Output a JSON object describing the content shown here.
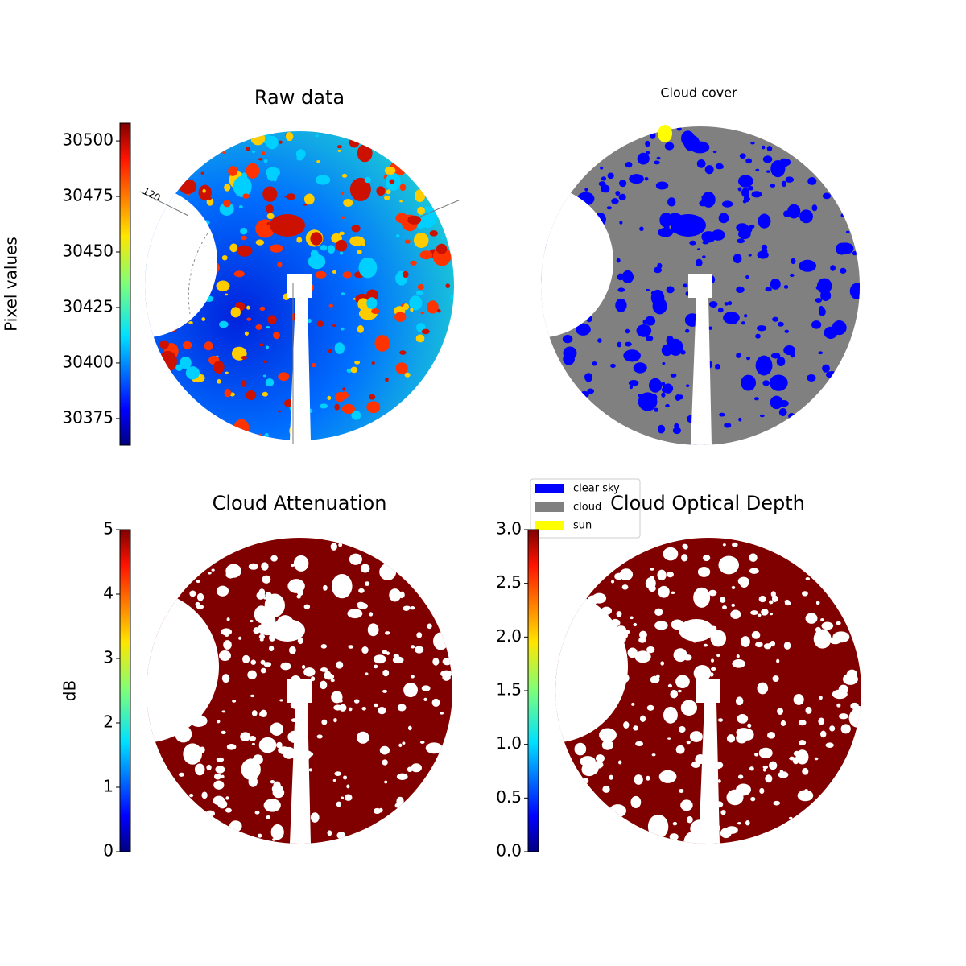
{
  "chart_data": [
    {
      "type": "image",
      "title": "Raw data",
      "annotations": [
        "120"
      ],
      "colorbar": {
        "label": "Pixel values",
        "colormap": "jet",
        "lim": [
          30363,
          30508
        ],
        "ticks": [
          30375,
          30400,
          30425,
          30450,
          30475,
          30500
        ]
      }
    },
    {
      "type": "image",
      "title": "Cloud cover",
      "legend": [
        {
          "name": "clear sky",
          "color": "#0000ff"
        },
        {
          "name": "cloud",
          "color": "#808080"
        },
        {
          "name": "sun",
          "color": "#ffff00"
        }
      ]
    },
    {
      "type": "image",
      "title": "Cloud Attenuation",
      "colorbar": {
        "label": "dB",
        "colormap": "jet",
        "lim": [
          0,
          5
        ],
        "ticks": [
          0,
          1,
          2,
          3,
          4,
          5
        ]
      }
    },
    {
      "type": "image",
      "title": "Cloud Optical Depth",
      "colorbar": {
        "colormap": "jet",
        "lim": [
          0,
          3
        ],
        "ticks": [
          {
            "value": 0,
            "label": "0.0"
          },
          {
            "value": 0.5,
            "label": "0.5"
          },
          {
            "value": 1,
            "label": "1.0"
          },
          {
            "value": 1.5,
            "label": "1.5"
          },
          {
            "value": 2,
            "label": "2.0"
          },
          {
            "value": 2.5,
            "label": "2.5"
          },
          {
            "value": 3,
            "label": "3.0"
          }
        ]
      }
    }
  ]
}
